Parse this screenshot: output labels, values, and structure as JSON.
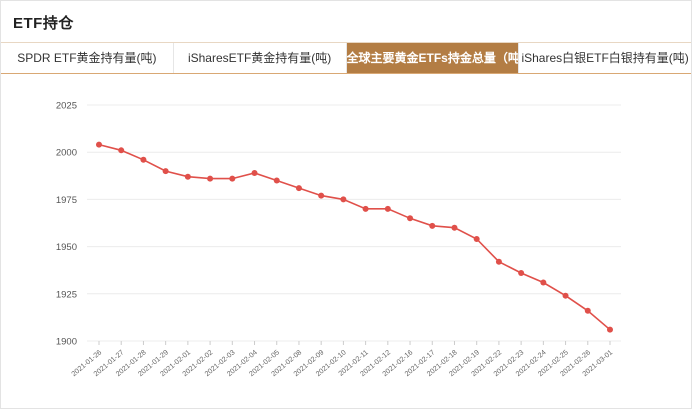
{
  "header": {
    "title": "ETF持仓"
  },
  "tabs": [
    {
      "label": "SPDR ETF黄金持有量(吨)",
      "active": false
    },
    {
      "label": "iSharesETF黄金持有量(吨)",
      "active": false
    },
    {
      "label": "全球主要黄金ETFs持金总量（吨）",
      "active": true
    },
    {
      "label": "iShares白银ETF白银持有量(吨)",
      "active": false
    }
  ],
  "colors": {
    "accent": "#b37d44",
    "series": "#e0504a",
    "grid": "#ececec"
  },
  "chart_data": {
    "type": "line",
    "title": "",
    "xlabel": "",
    "ylabel": "",
    "ylim": [
      1900,
      2025
    ],
    "yticks": [
      1900,
      1925,
      1950,
      1975,
      2000,
      2025
    ],
    "grid": true,
    "x": [
      "2021-01-26",
      "2021-01-27",
      "2021-01-28",
      "2021-01-29",
      "2021-02-01",
      "2021-02-02",
      "2021-02-03",
      "2021-02-04",
      "2021-02-05",
      "2021-02-08",
      "2021-02-09",
      "2021-02-10",
      "2021-02-11",
      "2021-02-12",
      "2021-02-16",
      "2021-02-17",
      "2021-02-18",
      "2021-02-19",
      "2021-02-22",
      "2021-02-23",
      "2021-02-24",
      "2021-02-25",
      "2021-02-26",
      "2021-03-01"
    ],
    "series": [
      {
        "name": "",
        "values": [
          2004,
          2001,
          1996,
          1990,
          1987,
          1986,
          1986,
          1989,
          1985,
          1981,
          1977,
          1975,
          1970,
          1970,
          1965,
          1961,
          1960,
          1954,
          1942,
          1936,
          1931,
          1924,
          1916,
          1906
        ]
      }
    ]
  }
}
